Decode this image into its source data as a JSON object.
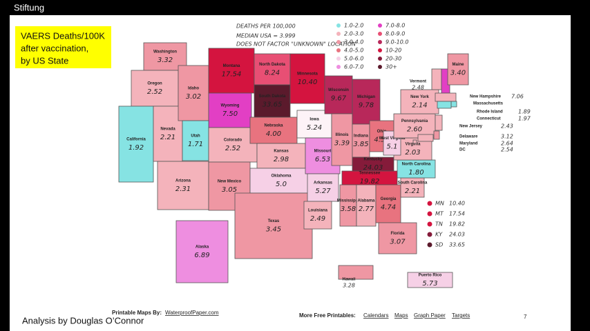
{
  "brand": "Stiftung",
  "caption": [
    "VAERS Deaths/100K",
    "after vaccination,",
    "by US State"
  ],
  "legend": {
    "title": "DEATHS PER 100,000",
    "median": "MEDIAN USA = 3.999",
    "note": "DOES NOT FACTOR \"UNKNOWN\" LOCATION",
    "buckets": [
      {
        "label": "1.0-2.0",
        "color": "#86e3e3"
      },
      {
        "label": "2.0-3.0",
        "color": "#f4b3bb"
      },
      {
        "label": "3.0-4.0",
        "color": "#ef97a3"
      },
      {
        "label": "4.0-5.0",
        "color": "#e8737f"
      },
      {
        "label": "5.0-6.0",
        "color": "#f6d0e6"
      },
      {
        "label": "6.0-7.0",
        "color": "#ee8ee0"
      },
      {
        "label": "7.0-8.0",
        "color": "#e23fc4"
      },
      {
        "label": "8.0-9.0",
        "color": "#e84f74"
      },
      {
        "label": "9.0-10.0",
        "color": "#b8285a"
      },
      {
        "label": "10-20",
        "color": "#d4143f"
      },
      {
        "label": "20-30",
        "color": "#851b3a"
      },
      {
        "label": "30+",
        "color": "#5b1a2c"
      }
    ]
  },
  "states": [
    {
      "name": "Washington",
      "value": "3.32",
      "color": "#ef97a3"
    },
    {
      "name": "Oregon",
      "value": "2.52",
      "color": "#f4b3bb"
    },
    {
      "name": "California",
      "value": "1.92",
      "color": "#86e3e3"
    },
    {
      "name": "Nevada",
      "value": "2.21",
      "color": "#f4b3bb"
    },
    {
      "name": "Idaho",
      "value": "3.02",
      "color": "#ef97a3"
    },
    {
      "name": "Montana",
      "value": "17.54",
      "color": "#d4143f"
    },
    {
      "name": "Wyoming",
      "value": "7.50",
      "color": "#e23fc4"
    },
    {
      "name": "Utah",
      "value": "1.71",
      "color": "#86e3e3"
    },
    {
      "name": "Arizona",
      "value": "2.31",
      "color": "#f4b3bb"
    },
    {
      "name": "Colorado",
      "value": "2.52",
      "color": "#f4b3bb"
    },
    {
      "name": "New Mexico",
      "value": "3.05",
      "color": "#ef97a3"
    },
    {
      "name": "North Dakota",
      "value": "8.24",
      "color": "#e84f74"
    },
    {
      "name": "South Dakota",
      "value": "33.65",
      "color": "#5b1a2c"
    },
    {
      "name": "Nebraska",
      "value": "4.00",
      "color": "#e8737f"
    },
    {
      "name": "Kansas",
      "value": "2.98",
      "color": "#f4b3bb"
    },
    {
      "name": "Oklahoma",
      "value": "5.0",
      "color": "#f6d0e6"
    },
    {
      "name": "Texas",
      "value": "3.45",
      "color": "#ef97a3"
    },
    {
      "name": "Minnesota",
      "value": "10.40",
      "color": "#d4143f"
    },
    {
      "name": "Iowa",
      "value": "5.24",
      "color": "#fdf3f7"
    },
    {
      "name": "Missouri",
      "value": "6.53",
      "color": "#ee8ee0"
    },
    {
      "name": "Arkansas",
      "value": "5.27",
      "color": "#f6d0e6"
    },
    {
      "name": "Louisiana",
      "value": "2.49",
      "color": "#f4b3bb"
    },
    {
      "name": "Wisconsin",
      "value": "9.67",
      "color": "#b8285a"
    },
    {
      "name": "Illinois",
      "value": "3.39",
      "color": "#ef97a3"
    },
    {
      "name": "Michigan",
      "value": "9.78",
      "color": "#b8285a"
    },
    {
      "name": "Indiana",
      "value": "3.85",
      "color": "#ef97a3"
    },
    {
      "name": "Ohio",
      "value": "4.50",
      "color": "#e8737f"
    },
    {
      "name": "Kentucky",
      "value": "24.03",
      "color": "#851b3a"
    },
    {
      "name": "Tennessee",
      "value": "19.82",
      "color": "#d4143f"
    },
    {
      "name": "Mississippi",
      "value": "3.58",
      "color": "#ef97a3"
    },
    {
      "name": "Alabama",
      "value": "2.77",
      "color": "#f4b3bb"
    },
    {
      "name": "Georgia",
      "value": "4.74",
      "color": "#e8737f"
    },
    {
      "name": "Florida",
      "value": "3.07",
      "color": "#ef97a3"
    },
    {
      "name": "South Carolina",
      "value": "2.21",
      "color": "#f4b3bb"
    },
    {
      "name": "North Carolina",
      "value": "1.80",
      "color": "#86e3e3"
    },
    {
      "name": "Virginia",
      "value": "2.03",
      "color": "#f4b3bb"
    },
    {
      "name": "West Virginia",
      "value": "5.1",
      "color": "#f6d0e6"
    },
    {
      "name": "Pennsylvania",
      "value": "2.60",
      "color": "#f4b3bb"
    },
    {
      "name": "New York",
      "value": "2.14",
      "color": "#f4b3bb"
    },
    {
      "name": "Vermont",
      "value": "2.48",
      "color": "#f4b3bb"
    },
    {
      "name": "New Hampshire",
      "value": "7.06",
      "color": "#e23fc4"
    },
    {
      "name": "Maine",
      "value": "3.40",
      "color": "#ef97a3"
    },
    {
      "name": "Massachusetts",
      "color": "#f4b3bb"
    },
    {
      "name": "Rhode Island",
      "value": "1.89",
      "color": "#86e3e3"
    },
    {
      "name": "Connecticut",
      "value": "1.97",
      "color": "#86e3e3"
    },
    {
      "name": "New Jersey",
      "value": "2.43",
      "color": "#f4b3bb"
    },
    {
      "name": "Delaware",
      "value": "3.12",
      "color": "#ef97a3"
    },
    {
      "name": "Maryland",
      "value": "2.64",
      "color": "#f4b3bb"
    },
    {
      "name": "DC",
      "value": "2.54",
      "color": "#f4b3bb"
    },
    {
      "name": "Alaska",
      "value": "6.89",
      "color": "#ee8ee0"
    },
    {
      "name": "Hawaii",
      "value": "3.28",
      "color": "#ef97a3"
    },
    {
      "name": "Puerto Rico",
      "value": "5.73",
      "color": "#f6d0e6"
    }
  ],
  "callouts": [
    {
      "label": "MN",
      "value": "10.40",
      "color": "#d4143f"
    },
    {
      "label": "MT",
      "value": "17.54",
      "color": "#d4143f"
    },
    {
      "label": "TN",
      "value": "19.82",
      "color": "#d4143f"
    },
    {
      "label": "KY",
      "value": "24.03",
      "color": "#851b3a"
    },
    {
      "label": "SD",
      "value": "33.65",
      "color": "#5b1a2c"
    }
  ],
  "footer": {
    "credit": "Printable Maps By:",
    "credit_link": "WaterproofPaper.com",
    "more": "More Free Printables:",
    "links": [
      "Calendars",
      "Maps",
      "Graph Paper",
      "Targets"
    ],
    "page": "7",
    "author": "Analysis by Douglas O’Connor"
  }
}
